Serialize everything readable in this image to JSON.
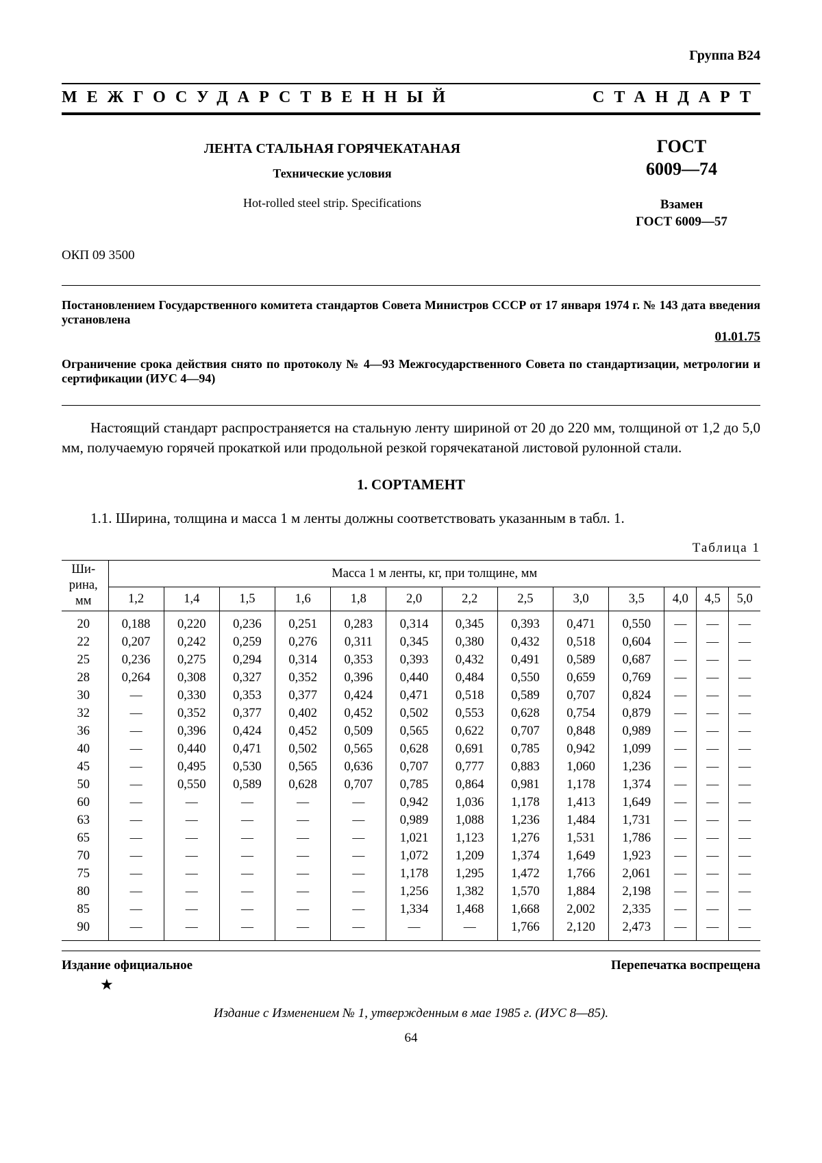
{
  "group_label": "Группа В24",
  "main_heading": "МЕЖГОСУДАРСТВЕННЫЙ СТАНДАРТ",
  "title_ru": "ЛЕНТА СТАЛЬНАЯ ГОРЯЧЕКАТАНАЯ",
  "subtitle_ru": "Технические условия",
  "title_en": "Hot-rolled steel strip. Specifications",
  "gost_label": "ГОСТ",
  "gost_number": "6009—74",
  "replaces_label": "Взамен",
  "replaces_value": "ГОСТ 6009—57",
  "okp": "ОКП 09 3500",
  "decree": "Постановлением Государственного комитета стандартов Совета Министров СССР от 17 января 1974 г. № 143 дата введения установлена",
  "decree_date": "01.01.75",
  "limitation": "Ограничение срока действия снято по протоколу № 4—93 Межгосударственного Совета по стандартизации, метрологии и сертификации (ИУС 4—94)",
  "body_text": "Настоящий стандарт распространяется на стальную ленту шириной от 20 до 220 мм, толщиной от 1,2 до 5,0 мм, получаемую горячей прокаткой или продольной резкой горячекатаной листовой рулонной стали.",
  "section_heading": "1. СОРТАМЕНТ",
  "clause_1_1": "1.1. Ширина, толщина и масса 1 м ленты должны соответствовать указанным в табл. 1.",
  "table_label": "Таблица 1",
  "table": {
    "rowhead_label": "Ши-\nрина,\nмм",
    "spanning_header": "Масса 1 м ленты, кг, при толщине, мм",
    "columns": [
      "1,2",
      "1,4",
      "1,5",
      "1,6",
      "1,8",
      "2,0",
      "2,2",
      "2,5",
      "3,0",
      "3,5",
      "4,0",
      "4,5",
      "5,0"
    ],
    "dash": "—",
    "rows": [
      {
        "w": "20",
        "v": [
          "0,188",
          "0,220",
          "0,236",
          "0,251",
          "0,283",
          "0,314",
          "0,345",
          "0,393",
          "0,471",
          "0,550",
          "—",
          "—",
          "—"
        ]
      },
      {
        "w": "22",
        "v": [
          "0,207",
          "0,242",
          "0,259",
          "0,276",
          "0,311",
          "0,345",
          "0,380",
          "0,432",
          "0,518",
          "0,604",
          "—",
          "—",
          "—"
        ]
      },
      {
        "w": "25",
        "v": [
          "0,236",
          "0,275",
          "0,294",
          "0,314",
          "0,353",
          "0,393",
          "0,432",
          "0,491",
          "0,589",
          "0,687",
          "—",
          "—",
          "—"
        ]
      },
      {
        "w": "28",
        "v": [
          "0,264",
          "0,308",
          "0,327",
          "0,352",
          "0,396",
          "0,440",
          "0,484",
          "0,550",
          "0,659",
          "0,769",
          "—",
          "—",
          "—"
        ]
      },
      {
        "w": "30",
        "v": [
          "—",
          "0,330",
          "0,353",
          "0,377",
          "0,424",
          "0,471",
          "0,518",
          "0,589",
          "0,707",
          "0,824",
          "—",
          "—",
          "—"
        ]
      },
      {
        "w": "32",
        "v": [
          "—",
          "0,352",
          "0,377",
          "0,402",
          "0,452",
          "0,502",
          "0,553",
          "0,628",
          "0,754",
          "0,879",
          "—",
          "—",
          "—"
        ]
      },
      {
        "w": "36",
        "v": [
          "—",
          "0,396",
          "0,424",
          "0,452",
          "0,509",
          "0,565",
          "0,622",
          "0,707",
          "0,848",
          "0,989",
          "—",
          "—",
          "—"
        ]
      },
      {
        "w": "40",
        "v": [
          "—",
          "0,440",
          "0,471",
          "0,502",
          "0,565",
          "0,628",
          "0,691",
          "0,785",
          "0,942",
          "1,099",
          "—",
          "—",
          "—"
        ]
      },
      {
        "w": "45",
        "v": [
          "—",
          "0,495",
          "0,530",
          "0,565",
          "0,636",
          "0,707",
          "0,777",
          "0,883",
          "1,060",
          "1,236",
          "—",
          "—",
          "—"
        ]
      },
      {
        "w": "50",
        "v": [
          "—",
          "0,550",
          "0,589",
          "0,628",
          "0,707",
          "0,785",
          "0,864",
          "0,981",
          "1,178",
          "1,374",
          "—",
          "—",
          "—"
        ]
      },
      {
        "w": "60",
        "v": [
          "—",
          "—",
          "—",
          "—",
          "—",
          "0,942",
          "1,036",
          "1,178",
          "1,413",
          "1,649",
          "—",
          "—",
          "—"
        ]
      },
      {
        "w": "63",
        "v": [
          "—",
          "—",
          "—",
          "—",
          "—",
          "0,989",
          "1,088",
          "1,236",
          "1,484",
          "1,731",
          "—",
          "—",
          "—"
        ]
      },
      {
        "w": "65",
        "v": [
          "—",
          "—",
          "—",
          "—",
          "—",
          "1,021",
          "1,123",
          "1,276",
          "1,531",
          "1,786",
          "—",
          "—",
          "—"
        ]
      },
      {
        "w": "70",
        "v": [
          "—",
          "—",
          "—",
          "—",
          "—",
          "1,072",
          "1,209",
          "1,374",
          "1,649",
          "1,923",
          "—",
          "—",
          "—"
        ]
      },
      {
        "w": "75",
        "v": [
          "—",
          "—",
          "—",
          "—",
          "—",
          "1,178",
          "1,295",
          "1,472",
          "1,766",
          "2,061",
          "—",
          "—",
          "—"
        ]
      },
      {
        "w": "80",
        "v": [
          "—",
          "—",
          "—",
          "—",
          "—",
          "1,256",
          "1,382",
          "1,570",
          "1,884",
          "2,198",
          "—",
          "—",
          "—"
        ]
      },
      {
        "w": "85",
        "v": [
          "—",
          "—",
          "—",
          "—",
          "—",
          "1,334",
          "1,468",
          "1,668",
          "2,002",
          "2,335",
          "—",
          "—",
          "—"
        ]
      },
      {
        "w": "90",
        "v": [
          "—",
          "—",
          "—",
          "—",
          "—",
          "—",
          "—",
          "1,766",
          "2,120",
          "2,473",
          "—",
          "—",
          "—"
        ]
      }
    ]
  },
  "footer_left": "Издание официальное",
  "footer_right": "Перепечатка воспрещена",
  "star": "★",
  "footer_note": "Издание с Изменением № 1, утвержденным в мае 1985 г. (ИУС 8—85).",
  "page_number": "64"
}
